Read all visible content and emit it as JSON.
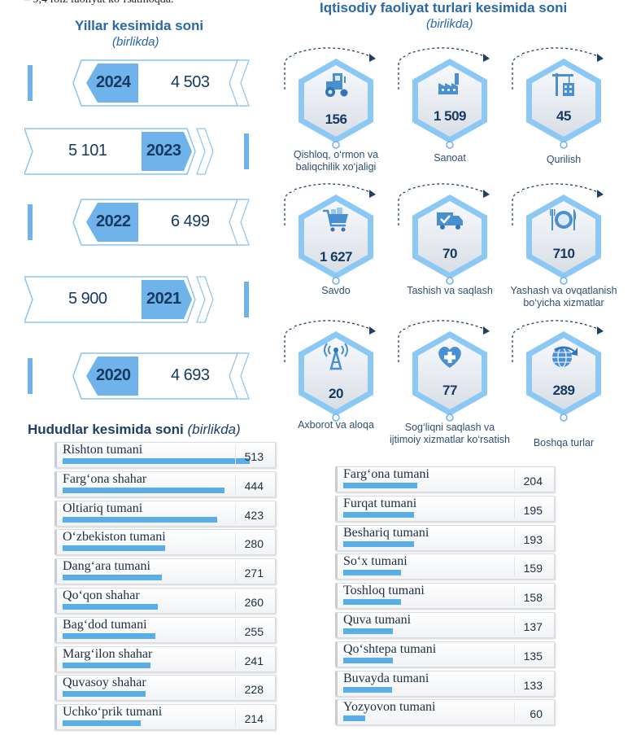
{
  "top_fragment": "– 9,4 foiz faoliyat ko‘rsatmoqda.",
  "years": {
    "title": "Yillar kesimida soni",
    "subtitle": "(birlikda)",
    "rows": [
      {
        "year": "2024",
        "value": "4 503"
      },
      {
        "year": "2023",
        "value": "5 101"
      },
      {
        "year": "2022",
        "value": "6 499"
      },
      {
        "year": "2021",
        "value": "5 900"
      },
      {
        "year": "2020",
        "value": "4 693"
      }
    ]
  },
  "activities": {
    "title": "Iqtisodiy faoliyat turlari kesimida soni",
    "subtitle": "(birlikda)",
    "items": [
      {
        "value": "156",
        "label": "Qishloq, o‘rmon va baliqchilik xo‘jaligi",
        "icon": "tractor-icon"
      },
      {
        "value": "1 509",
        "label": "Sanoat",
        "icon": "factory-icon"
      },
      {
        "value": "45",
        "label": "Qurilish",
        "icon": "crane-icon"
      },
      {
        "value": "1 627",
        "label": "Savdo",
        "icon": "shopping-cart-icon"
      },
      {
        "value": "70",
        "label": "Tashish va saqlash",
        "icon": "delivery-truck-icon"
      },
      {
        "value": "710",
        "label": "Yashash va ovqatlanish bo‘yicha xizmatlar",
        "icon": "plate-cutlery-icon"
      },
      {
        "value": "20",
        "label": "Axborot va aloqa",
        "icon": "antenna-icon"
      },
      {
        "value": "77",
        "label": "Sog‘liqni saqlash va ijtimoiy xizmatlar ko‘rsatish",
        "icon": "medical-heart-icon"
      },
      {
        "value": "289",
        "label": "Boshqa turlar",
        "icon": "globe-arrow-icon"
      }
    ]
  },
  "regions": {
    "title": "Hududlar kesimida soni",
    "subtitle": "(birlikda)"
  },
  "colors": {
    "accent": "#6fb3ea",
    "dark": "#173a63",
    "title": "#2a67a6",
    "bar": "#5aaee8"
  },
  "chart_data": {
    "type": "bar",
    "title": "Hududlar kesimida soni",
    "subtitle": "(birlikda)",
    "categories": [
      "Rishton tumani",
      "Farg‘ona shahar",
      "Oltiariq tumani",
      "O‘zbekiston tumani",
      "Dang‘ara tumani",
      "Qo‘qon shahar",
      "Bag‘dod tumani",
      "Marg‘ilon shahar",
      "Quvasoy shahar",
      "Uchko‘prik tumani",
      "Farg‘ona tumani",
      "Furqat tumani",
      "Beshariq tumani",
      "So‘x tumani",
      "Toshloq tumani",
      "Quva tumani",
      "Qo‘shtepa tumani",
      "Buvayda tumani",
      "Yozyovon tumani"
    ],
    "values": [
      513,
      444,
      423,
      280,
      271,
      260,
      255,
      241,
      228,
      214,
      204,
      195,
      193,
      159,
      158,
      137,
      135,
      133,
      60
    ],
    "orientation": "horizontal"
  }
}
